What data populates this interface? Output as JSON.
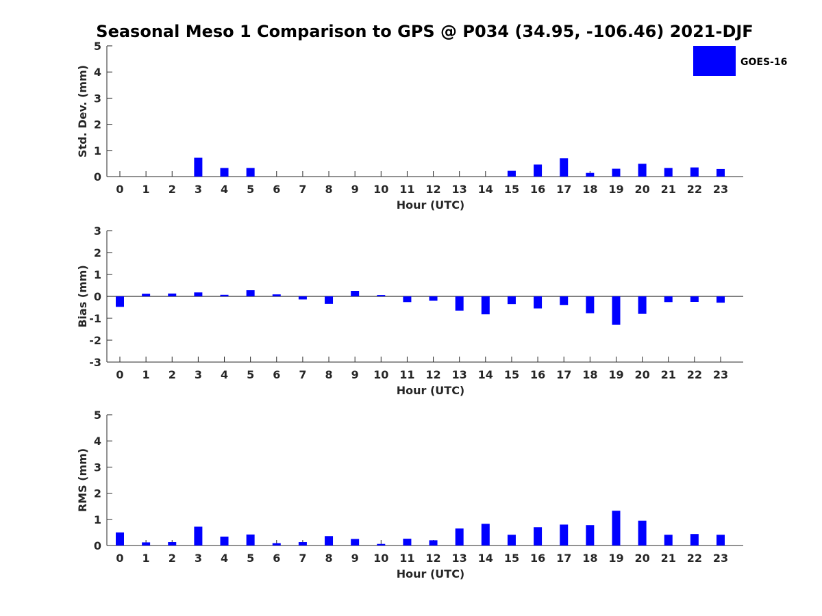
{
  "figure_title": "Seasonal Meso 1 Comparison to GPS @ P034 (34.95, -106.46) 2021-DJF",
  "legend": {
    "label": "GOES-16",
    "color": "#0000ff"
  },
  "chart_data": [
    {
      "type": "bar",
      "id": "std",
      "xlabel": "Hour (UTC)",
      "ylabel": "Std. Dev. (mm)",
      "ylim": [
        0,
        5
      ],
      "yticks": [
        0,
        1,
        2,
        3,
        4,
        5
      ],
      "categories": [
        "0",
        "1",
        "2",
        "3",
        "4",
        "5",
        "6",
        "7",
        "8",
        "9",
        "10",
        "11",
        "12",
        "13",
        "14",
        "15",
        "16",
        "17",
        "18",
        "19",
        "20",
        "21",
        "22",
        "23"
      ],
      "series": [
        {
          "name": "GOES-16",
          "color": "#0000ff",
          "values": [
            0,
            0,
            0,
            0.72,
            0.33,
            0.33,
            0,
            0,
            0,
            0,
            0,
            0,
            0,
            0,
            0,
            0.22,
            0.46,
            0.7,
            0.14,
            0.3,
            0.49,
            0.33,
            0.35,
            0.29
          ]
        }
      ]
    },
    {
      "type": "bar",
      "id": "bias",
      "xlabel": "Hour (UTC)",
      "ylabel": "Bias (mm)",
      "ylim": [
        -3,
        3
      ],
      "yticks": [
        -3,
        -2,
        -1,
        0,
        1,
        2,
        3
      ],
      "categories": [
        "0",
        "1",
        "2",
        "3",
        "4",
        "5",
        "6",
        "7",
        "8",
        "9",
        "10",
        "11",
        "12",
        "13",
        "14",
        "15",
        "16",
        "17",
        "18",
        "19",
        "20",
        "21",
        "22",
        "23"
      ],
      "series": [
        {
          "name": "GOES-16",
          "color": "#0000ff",
          "values": [
            -0.48,
            0.12,
            0.13,
            0.18,
            0.07,
            0.28,
            0.09,
            -0.14,
            -0.34,
            0.25,
            0.06,
            -0.26,
            -0.2,
            -0.65,
            -0.82,
            -0.35,
            -0.55,
            -0.4,
            -0.77,
            -1.3,
            -0.8,
            -0.26,
            -0.25,
            -0.29
          ]
        }
      ]
    },
    {
      "type": "bar",
      "id": "rms",
      "xlabel": "Hour (UTC)",
      "ylabel": "RMS (mm)",
      "ylim": [
        0,
        5
      ],
      "yticks": [
        0,
        1,
        2,
        3,
        4,
        5
      ],
      "categories": [
        "0",
        "1",
        "2",
        "3",
        "4",
        "5",
        "6",
        "7",
        "8",
        "9",
        "10",
        "11",
        "12",
        "13",
        "14",
        "15",
        "16",
        "17",
        "18",
        "19",
        "20",
        "21",
        "22",
        "23"
      ],
      "series": [
        {
          "name": "GOES-16",
          "color": "#0000ff",
          "values": [
            0.5,
            0.12,
            0.13,
            0.72,
            0.34,
            0.42,
            0.09,
            0.13,
            0.36,
            0.25,
            0.06,
            0.26,
            0.2,
            0.65,
            0.83,
            0.41,
            0.7,
            0.8,
            0.78,
            1.33,
            0.95,
            0.41,
            0.44,
            0.41
          ]
        }
      ]
    }
  ]
}
